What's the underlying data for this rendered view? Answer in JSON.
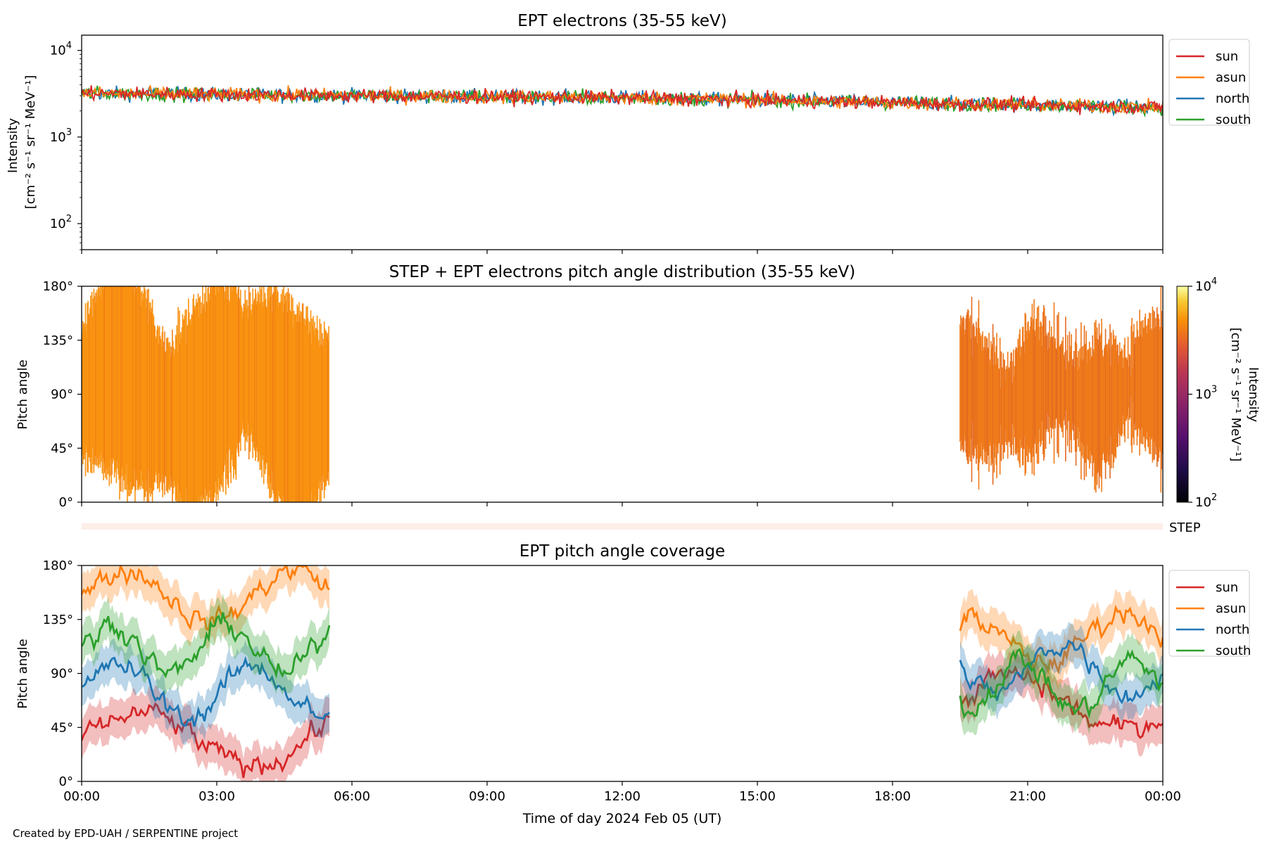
{
  "footer": {
    "credit": "Created by EPD-UAH / SERPENTINE project"
  },
  "colors": {
    "sun": "#d62728",
    "asun": "#ff7f0e",
    "north": "#1f77b4",
    "south": "#2ca02c"
  },
  "time_axis": {
    "label": "Time of day 2024 Feb 05 (UT)",
    "range_hours": [
      0,
      24
    ],
    "ticks": [
      "00:00",
      "03:00",
      "06:00",
      "09:00",
      "12:00",
      "15:00",
      "18:00",
      "21:00",
      "00:00"
    ]
  },
  "chart_data": [
    {
      "id": "intensity",
      "type": "line",
      "title": "EPT electrons (35-55 keV)",
      "ylabel": "Intensity",
      "yunit": "[cm⁻² s⁻¹ sr⁻¹ MeV⁻¹]",
      "yscale": "log",
      "ylim": [
        50,
        15000
      ],
      "yticks": [
        {
          "value": 100,
          "base": "10",
          "exp": "2"
        },
        {
          "value": 1000,
          "base": "10",
          "exp": "3"
        },
        {
          "value": 10000,
          "base": "10",
          "exp": "4"
        }
      ],
      "legend": [
        "sun",
        "asun",
        "north",
        "south"
      ],
      "legend_position": "outside-right",
      "trend": {
        "x": [
          0,
          6,
          12,
          18,
          24
        ],
        "y": [
          3200,
          3000,
          2850,
          2500,
          2200
        ]
      }
    },
    {
      "id": "pad",
      "type": "heatmap",
      "title": "STEP + EPT electrons pitch angle distribution (35-55 keV)",
      "ylabel": "Pitch angle",
      "ylim": [
        0,
        180
      ],
      "yticks": [
        "0°",
        "45°",
        "90°",
        "135°",
        "180°"
      ],
      "coverage_hours": [
        [
          0,
          5.5
        ],
        [
          19.5,
          24
        ]
      ],
      "colorbar": {
        "label": "Intensity",
        "unit": "[cm⁻² s⁻¹ sr⁻¹ MeV⁻¹]",
        "scale": "log",
        "range": [
          100,
          10000
        ],
        "ticks": [
          {
            "base": "10",
            "exp": "2"
          },
          {
            "base": "10",
            "exp": "3"
          },
          {
            "base": "10",
            "exp": "4"
          }
        ],
        "colormap": "inferno"
      },
      "step_label": "STEP"
    },
    {
      "id": "coverage",
      "type": "line",
      "title": "EPT pitch angle coverage",
      "ylabel": "Pitch angle",
      "ylim": [
        0,
        180
      ],
      "yticks": [
        "0°",
        "45°",
        "90°",
        "135°",
        "180°"
      ],
      "legend": [
        "sun",
        "asun",
        "north",
        "south"
      ],
      "legend_position": "outside-right",
      "segments": [
        [
          0,
          5.5
        ],
        [
          19.5,
          24
        ]
      ],
      "series": [
        {
          "name": "sun",
          "segment1_mean": 35,
          "segment2_mean": 65
        },
        {
          "name": "asun",
          "segment1_mean": 155,
          "segment2_mean": 120
        },
        {
          "name": "north",
          "segment1_mean": 75,
          "segment2_mean": 95
        },
        {
          "name": "south",
          "segment1_mean": 110,
          "segment2_mean": 80
        }
      ]
    }
  ]
}
